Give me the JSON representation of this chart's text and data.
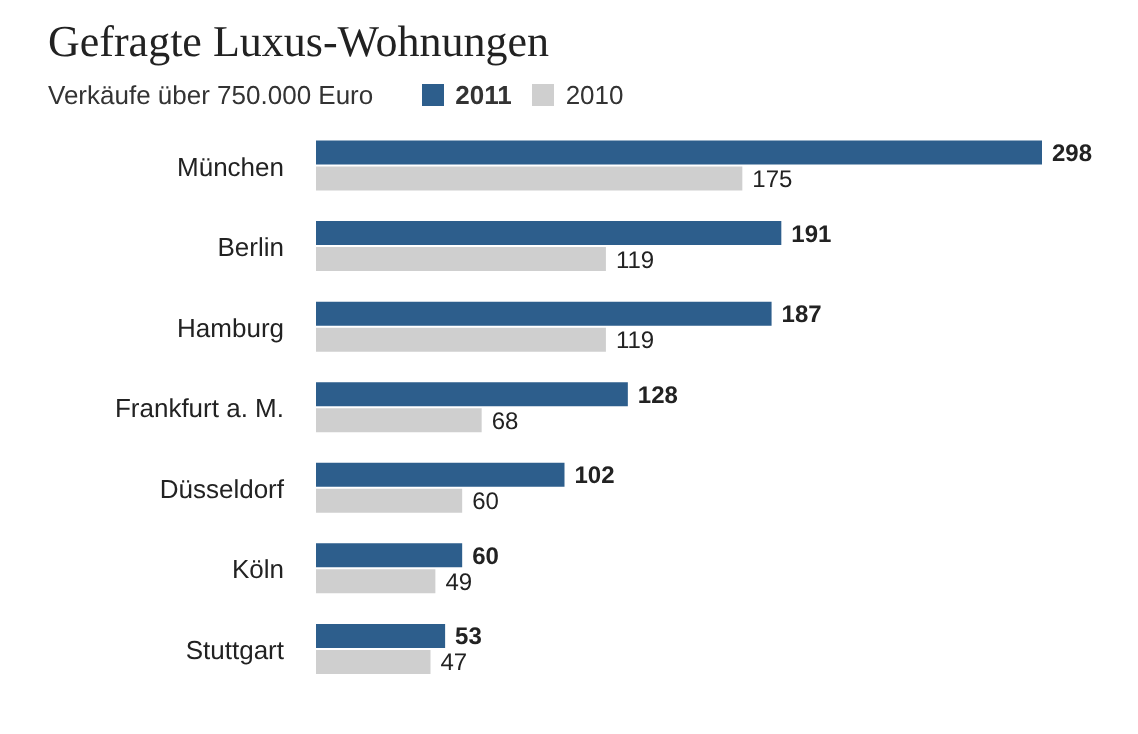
{
  "chart_data": {
    "type": "bar",
    "orientation": "horizontal",
    "tick_labels": false,
    "title": "Gefragte Luxus-Wohnungen",
    "legend_title": "Verkäufe über 750.000 Euro",
    "legend": "top left",
    "data_labels": true,
    "categories": [
      "München",
      "Berlin",
      "Hamburg",
      "Frankfurt a. M.",
      "Düsseldorf",
      "Köln",
      "Stuttgart"
    ],
    "series": [
      {
        "name": "2011",
        "color": "#2d5e8c",
        "values": [
          298,
          191,
          187,
          128,
          102,
          60,
          53
        ]
      },
      {
        "name": "2010",
        "color": "#cfcfcf",
        "values": [
          175,
          119,
          119,
          68,
          60,
          49,
          47
        ]
      }
    ]
  }
}
